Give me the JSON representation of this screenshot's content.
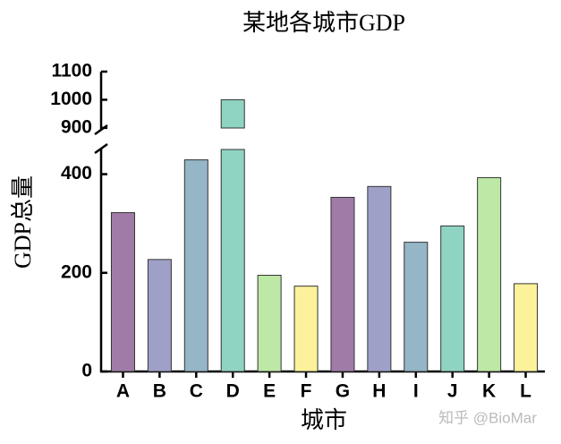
{
  "chart_data": {
    "type": "bar",
    "title": "某地各城市GDP",
    "x_label": "城市",
    "y_label": "GDP总量",
    "categories": [
      "A",
      "B",
      "C",
      "D",
      "E",
      "F",
      "G",
      "H",
      "I",
      "J",
      "K",
      "L"
    ],
    "values": [
      322,
      227,
      429,
      1000,
      195,
      173,
      353,
      375,
      262,
      295,
      393,
      178
    ],
    "colors": [
      "#a07ba8",
      "#9fa0c8",
      "#94b6c6",
      "#8fd4c2",
      "#bde8a5",
      "#fbf29b",
      "#a07ba8",
      "#9fa0c8",
      "#94b6c6",
      "#8fd4c2",
      "#bde8a5",
      "#fbf29b"
    ],
    "ylim_lower": [
      0,
      450
    ],
    "yticks_lower": [
      0,
      200,
      400
    ],
    "ylim_upper": [
      890,
      1100
    ],
    "yticks_upper": [
      900,
      1000,
      1100
    ],
    "watermark": "知乎 @BioMar"
  }
}
